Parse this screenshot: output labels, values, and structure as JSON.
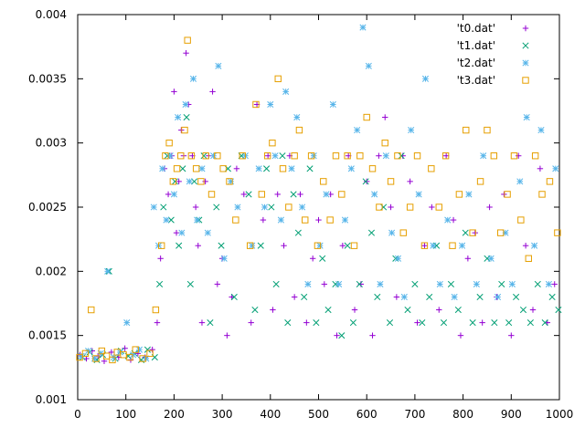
{
  "chart_data": {
    "type": "scatter",
    "title": "",
    "xlabel": "",
    "ylabel": "",
    "xlim": [
      0,
      1000
    ],
    "ylim": [
      0.001,
      0.004
    ],
    "x_ticks": [
      0,
      100,
      200,
      300,
      400,
      500,
      600,
      700,
      800,
      900,
      1000
    ],
    "y_ticks": [
      0.001,
      0.0015,
      0.002,
      0.0025,
      0.003,
      0.0035,
      0.004
    ],
    "y_tick_labels": [
      "0.001",
      "0.0015",
      "0.002",
      "0.0025",
      "0.003",
      "0.0035",
      "0.004"
    ],
    "grid": false,
    "legend_position": "top-right",
    "series": [
      {
        "name": "'t0.dat'",
        "marker": "plus",
        "color": "#9400d3",
        "x": [
          5,
          18,
          30,
          42,
          55,
          70,
          85,
          98,
          110,
          125,
          140,
          155,
          165,
          172,
          180,
          188,
          195,
          200,
          205,
          210,
          215,
          220,
          225,
          230,
          238,
          245,
          250,
          258,
          265,
          272,
          280,
          290,
          300,
          310,
          320,
          330,
          345,
          360,
          372,
          385,
          395,
          405,
          415,
          428,
          440,
          450,
          462,
          475,
          488,
          500,
          512,
          525,
          538,
          550,
          562,
          575,
          588,
          600,
          612,
          625,
          638,
          650,
          662,
          675,
          690,
          705,
          720,
          735,
          750,
          765,
          780,
          795,
          810,
          825,
          840,
          855,
          870,
          885,
          900,
          915,
          930,
          945,
          960,
          975,
          990
        ],
        "y": [
          0.00135,
          0.00132,
          0.00138,
          0.00134,
          0.0013,
          0.00137,
          0.00133,
          0.0014,
          0.00131,
          0.00136,
          0.00133,
          0.00139,
          0.0016,
          0.0021,
          0.0028,
          0.0026,
          0.0029,
          0.0034,
          0.0023,
          0.0027,
          0.0031,
          0.0029,
          0.0037,
          0.0033,
          0.0029,
          0.0025,
          0.0022,
          0.0016,
          0.0027,
          0.0029,
          0.0034,
          0.0019,
          0.0021,
          0.0015,
          0.0018,
          0.0028,
          0.0026,
          0.0016,
          0.0033,
          0.0024,
          0.0029,
          0.0017,
          0.0026,
          0.0022,
          0.0029,
          0.0018,
          0.0026,
          0.0016,
          0.0021,
          0.0024,
          0.0019,
          0.0026,
          0.0015,
          0.0022,
          0.0029,
          0.0017,
          0.0019,
          0.0027,
          0.0015,
          0.0029,
          0.0032,
          0.0025,
          0.0018,
          0.0029,
          0.0027,
          0.0016,
          0.0022,
          0.0025,
          0.0017,
          0.0029,
          0.0024,
          0.0015,
          0.0021,
          0.0023,
          0.0016,
          0.0025,
          0.0018,
          0.0026,
          0.0015,
          0.0029,
          0.0022,
          0.0017,
          0.0028,
          0.0016,
          0.0019
        ]
      },
      {
        "name": "'t1.dat'",
        "marker": "cross",
        "color": "#009e73",
        "x": [
          10,
          25,
          40,
          52,
          65,
          78,
          90,
          105,
          118,
          132,
          145,
          160,
          170,
          178,
          186,
          194,
          202,
          210,
          218,
          226,
          234,
          242,
          252,
          262,
          275,
          288,
          298,
          312,
          325,
          340,
          355,
          368,
          380,
          392,
          402,
          412,
          425,
          436,
          448,
          458,
          470,
          482,
          495,
          508,
          520,
          535,
          548,
          560,
          572,
          585,
          598,
          610,
          622,
          635,
          648,
          660,
          672,
          685,
          700,
          715,
          730,
          745,
          760,
          775,
          790,
          805,
          820,
          835,
          850,
          865,
          880,
          895,
          910,
          925,
          940,
          955,
          970,
          985,
          998
        ],
        "y": [
          0.00133,
          0.00137,
          0.00131,
          0.00135,
          0.002,
          0.00132,
          0.00138,
          0.00134,
          0.00136,
          0.00131,
          0.00139,
          0.00133,
          0.0019,
          0.0025,
          0.0029,
          0.0024,
          0.0027,
          0.0022,
          0.0028,
          0.0032,
          0.0019,
          0.0027,
          0.0024,
          0.0029,
          0.0016,
          0.0025,
          0.0022,
          0.0028,
          0.0018,
          0.0029,
          0.0026,
          0.0017,
          0.0022,
          0.0028,
          0.0025,
          0.0019,
          0.0029,
          0.0016,
          0.0026,
          0.0023,
          0.0018,
          0.0028,
          0.0016,
          0.0021,
          0.0017,
          0.0019,
          0.0015,
          0.0022,
          0.0016,
          0.0019,
          0.0027,
          0.0023,
          0.0018,
          0.0025,
          0.0016,
          0.0021,
          0.0029,
          0.0017,
          0.0019,
          0.0016,
          0.0018,
          0.0022,
          0.0016,
          0.0019,
          0.0017,
          0.0023,
          0.0016,
          0.0018,
          0.0021,
          0.0016,
          0.0019,
          0.0016,
          0.0018,
          0.0017,
          0.0016,
          0.0019,
          0.0016,
          0.0018,
          0.0017
        ]
      },
      {
        "name": "'t2.dat'",
        "marker": "star",
        "color": "#56b4e9",
        "x": [
          8,
          22,
          35,
          48,
          62,
          75,
          88,
          102,
          115,
          128,
          142,
          158,
          168,
          176,
          184,
          192,
          200,
          208,
          216,
          224,
          232,
          240,
          248,
          258,
          270,
          282,
          292,
          304,
          318,
          332,
          348,
          362,
          376,
          388,
          400,
          410,
          422,
          432,
          444,
          455,
          466,
          478,
          490,
          503,
          516,
          530,
          542,
          555,
          568,
          580,
          592,
          604,
          616,
          628,
          640,
          652,
          665,
          678,
          692,
          708,
          722,
          738,
          752,
          768,
          782,
          798,
          812,
          828,
          842,
          858,
          872,
          888,
          902,
          918,
          932,
          948,
          962,
          978,
          992
        ],
        "y": [
          0.00134,
          0.00138,
          0.00132,
          0.00136,
          0.002,
          0.00133,
          0.00137,
          0.0016,
          0.00135,
          0.00139,
          0.00132,
          0.0025,
          0.0022,
          0.0028,
          0.0024,
          0.0029,
          0.0026,
          0.0032,
          0.0023,
          0.0033,
          0.0027,
          0.0035,
          0.0024,
          0.0028,
          0.0023,
          0.0029,
          0.0036,
          0.0021,
          0.0027,
          0.0025,
          0.0029,
          0.0022,
          0.0028,
          0.0025,
          0.0033,
          0.0029,
          0.0024,
          0.0034,
          0.0028,
          0.0032,
          0.0025,
          0.0019,
          0.0029,
          0.0022,
          0.0026,
          0.0033,
          0.0019,
          0.0024,
          0.0028,
          0.0031,
          0.0039,
          0.0036,
          0.0026,
          0.0019,
          0.0029,
          0.0023,
          0.0021,
          0.0018,
          0.0031,
          0.0026,
          0.0035,
          0.0022,
          0.0019,
          0.0024,
          0.0018,
          0.0022,
          0.0026,
          0.0019,
          0.0029,
          0.0021,
          0.0018,
          0.0023,
          0.0019,
          0.0027,
          0.0032,
          0.0022,
          0.0031,
          0.0019,
          0.0028
        ]
      },
      {
        "name": "'t3.dat'",
        "marker": "square",
        "color": "#e69f00",
        "x": [
          4,
          16,
          28,
          38,
          50,
          60,
          72,
          82,
          95,
          108,
          120,
          135,
          150,
          162,
          174,
          182,
          190,
          198,
          206,
          214,
          222,
          228,
          236,
          246,
          256,
          266,
          278,
          290,
          302,
          315,
          328,
          342,
          358,
          370,
          382,
          394,
          404,
          416,
          426,
          438,
          450,
          460,
          472,
          485,
          498,
          510,
          524,
          536,
          548,
          560,
          574,
          586,
          600,
          612,
          626,
          638,
          650,
          664,
          676,
          690,
          705,
          720,
          734,
          750,
          764,
          778,
          792,
          806,
          820,
          836,
          850,
          864,
          878,
          892,
          906,
          920,
          936,
          950,
          964,
          980,
          996
        ],
        "y": [
          0.00133,
          0.00136,
          0.0017,
          0.00132,
          0.00138,
          0.00134,
          0.00131,
          0.00137,
          0.00135,
          0.00133,
          0.00139,
          0.00132,
          0.00136,
          0.0017,
          0.0022,
          0.0029,
          0.003,
          0.0027,
          0.0028,
          0.0029,
          0.0031,
          0.0038,
          0.0029,
          0.0028,
          0.0027,
          0.0029,
          0.0026,
          0.0029,
          0.0028,
          0.0027,
          0.0024,
          0.0029,
          0.0022,
          0.0033,
          0.0026,
          0.0029,
          0.003,
          0.0035,
          0.0028,
          0.0025,
          0.0029,
          0.0031,
          0.0024,
          0.0029,
          0.0022,
          0.0027,
          0.0024,
          0.0029,
          0.0026,
          0.0029,
          0.0022,
          0.0029,
          0.0032,
          0.0028,
          0.0025,
          0.003,
          0.0027,
          0.0029,
          0.0023,
          0.0025,
          0.0029,
          0.0022,
          0.0028,
          0.0025,
          0.0029,
          0.0022,
          0.0026,
          0.0031,
          0.0023,
          0.0027,
          0.0031,
          0.0029,
          0.0023,
          0.0026,
          0.0029,
          0.0024,
          0.0021,
          0.0029,
          0.0026,
          0.0027,
          0.0023
        ]
      }
    ]
  }
}
